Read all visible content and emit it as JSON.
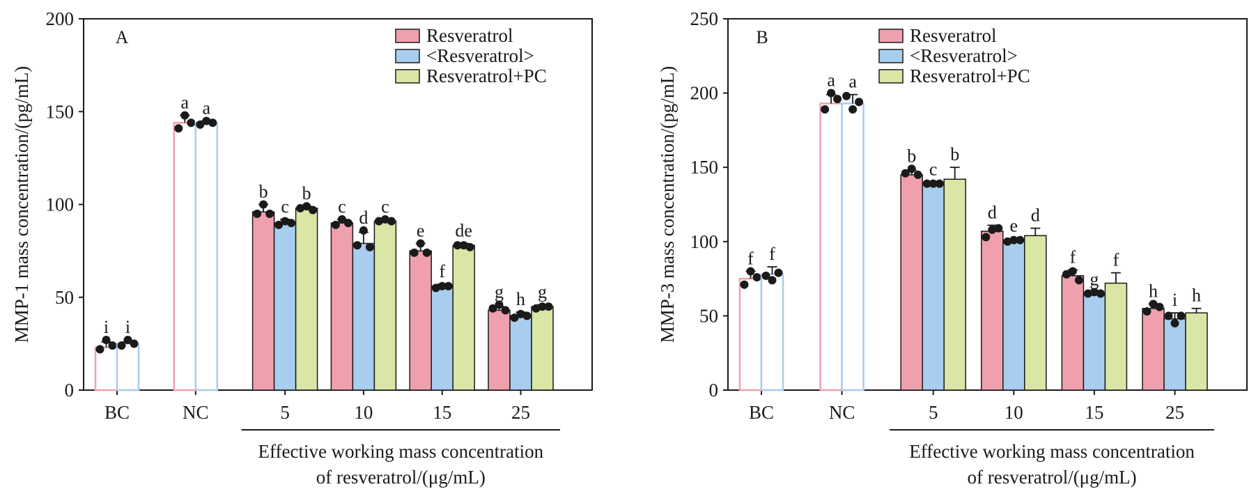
{
  "chart_data": [
    {
      "type": "bar",
      "panel_label": "A",
      "ylabel": "MMP-1 mass concentration/(pg/mL)",
      "xlabel_lines": [
        "Effective working mass concentration",
        "of resveratrol/(μg/mL)"
      ],
      "ylim": [
        0,
        200
      ],
      "yticks": [
        "0",
        "50",
        "100",
        "150",
        "200"
      ],
      "categories": [
        "BC",
        "NC",
        "5",
        "10",
        "15",
        "25"
      ],
      "legend_position": "top-right",
      "series": [
        {
          "name": "Resveratrol",
          "color": "#f0a0ad",
          "values": [
            23,
            144,
            96,
            90,
            75,
            43
          ],
          "errors": [
            3,
            4,
            4,
            2,
            4,
            2
          ],
          "points": [
            [
              22,
              27,
              24
            ],
            [
              141,
              148,
              144
            ],
            [
              95,
              100,
              95
            ],
            [
              89,
              92,
              90
            ],
            [
              74,
              79,
              74
            ],
            [
              44,
              46,
              43
            ]
          ],
          "letters": [
            "i",
            "a",
            "b",
            "c",
            "e",
            "g"
          ]
        },
        {
          "name": "<Resveratrol>",
          "color": "#a8cdee",
          "values": [
            25,
            144,
            90,
            79,
            56,
            40
          ],
          "errors": [
            1,
            1,
            2,
            6,
            1,
            2
          ],
          "points": [
            [
              24,
              27,
              25
            ],
            [
              143,
              145,
              144
            ],
            [
              89,
              91,
              90
            ],
            [
              78,
              86,
              77
            ],
            [
              55,
              56,
              56
            ],
            [
              39,
              41,
              40
            ]
          ],
          "letters": [
            "i",
            "a",
            "c",
            "d",
            "f",
            "h"
          ]
        },
        {
          "name": "Resveratrol+PC",
          "color": "#d9e6a5",
          "values": [
            null,
            null,
            98,
            91,
            78,
            45
          ],
          "errors": [
            null,
            null,
            1,
            1,
            1,
            1
          ],
          "points": [
            null,
            null,
            [
              98,
              99,
              97
            ],
            [
              91,
              92,
              91
            ],
            [
              78,
              78,
              77
            ],
            [
              44,
              45,
              45
            ]
          ],
          "letters": [
            "",
            "",
            "b",
            "c",
            "de",
            "g"
          ]
        }
      ]
    },
    {
      "type": "bar",
      "panel_label": "B",
      "ylabel": "MMP-3 mass concentration/(pg/mL)",
      "xlabel_lines": [
        "Effective working mass concentration",
        "of resveratrol/(μg/mL)"
      ],
      "ylim": [
        0,
        250
      ],
      "yticks": [
        "0",
        "50",
        "100",
        "150",
        "200",
        "250"
      ],
      "categories": [
        "BC",
        "NC",
        "5",
        "10",
        "15",
        "25"
      ],
      "legend_position": "top-right",
      "series": [
        {
          "name": "Resveratrol",
          "color": "#f0a0ad",
          "values": [
            75,
            193,
            145,
            107,
            77,
            55
          ],
          "errors": [
            5,
            6,
            3,
            4,
            4,
            3
          ],
          "points": [
            [
              71,
              80,
              76
            ],
            [
              189,
              200,
              196
            ],
            [
              146,
              149,
              145
            ],
            [
              103,
              108,
              109
            ],
            [
              78,
              80,
              74
            ],
            [
              53,
              58,
              56
            ]
          ],
          "letters": [
            "f",
            "a",
            "b",
            "d",
            "f",
            "h"
          ]
        },
        {
          "name": "<Resveratrol>",
          "color": "#a8cdee",
          "values": [
            78,
            193,
            139,
            101,
            64,
            48
          ],
          "errors": [
            5,
            6,
            1,
            1,
            2,
            4
          ],
          "points": [
            [
              77,
              74,
              79
            ],
            [
              198,
              189,
              194
            ],
            [
              139,
              139,
              139
            ],
            [
              100,
              101,
              101
            ],
            [
              65,
              66,
              65
            ],
            [
              50,
              45,
              50
            ]
          ],
          "letters": [
            "f",
            "a",
            "c",
            "e",
            "g",
            "i"
          ]
        },
        {
          "name": "Resveratrol+PC",
          "color": "#d9e6a5",
          "values": [
            null,
            null,
            142,
            104,
            72,
            52
          ],
          "errors": [
            null,
            null,
            8,
            5,
            7,
            3
          ],
          "points": [
            null,
            null,
            null,
            null,
            null,
            null
          ],
          "letters": [
            "",
            "",
            "b",
            "d",
            "f",
            "h"
          ]
        }
      ]
    }
  ]
}
